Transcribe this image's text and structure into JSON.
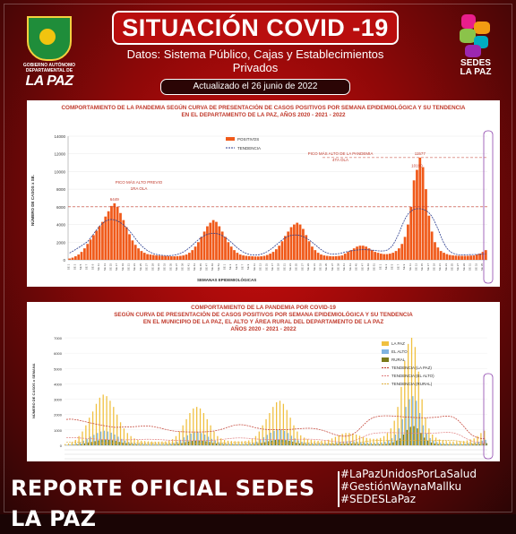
{
  "header": {
    "gov_name": "GOBIERNO AUTÓNOMO DEPARTAMENTAL DE",
    "gov_lapaz": "LA PAZ",
    "title": "SITUACIÓN COVID -19",
    "subtitle": "Datos: Sistema Público, Cajas y Establecimientos Privados",
    "updated_label": "Actualizado el",
    "updated_date": "26  junio de 2022",
    "sedes_line1": "SEDES",
    "sedes_line2": "LA PAZ"
  },
  "footer": {
    "report": "REPORTE OFICIAL SEDES LA PAZ",
    "hashtags": [
      "#LaPazUnidosPorLaSalud",
      "#GestiónWaynaMallku",
      "#SEDESLaPaz"
    ]
  },
  "chart_data": [
    {
      "type": "bar",
      "title_lines": [
        "COMPORTAMIENTO DE LA PANDEMIA SEGÚN CURVA DE PRESENTACIÓN DE CASOS POSITIVOS POR SEMANA EPIDEMIOLÓGICA Y SU TENDENCIA",
        "EN EL DEPARTAMENTO DE LA PAZ, AÑOS 2020 - 2021 - 2022"
      ],
      "xlabel": "SEMANAS EPIDEMIOLÓGICAS",
      "ylabel": "NÚMERO DE CASOS x SE.",
      "ylim": [
        0,
        14000
      ],
      "yticks": [
        0,
        2000,
        4000,
        6000,
        8000,
        10000,
        12000,
        14000
      ],
      "series": [
        {
          "name": "POSITIVOS",
          "color": "#f05a1a",
          "values": [
            150,
            250,
            400,
            600,
            900,
            1300,
            1800,
            2300,
            2800,
            3300,
            3800,
            4300,
            4900,
            5500,
            6100,
            6400,
            6000,
            5300,
            4500,
            3700,
            2900,
            2200,
            1700,
            1300,
            1000,
            800,
            650,
            600,
            550,
            500,
            480,
            450,
            430,
            420,
            400,
            400,
            420,
            450,
            500,
            600,
            800,
            1100,
            1500,
            2000,
            2600,
            3200,
            3800,
            4200,
            4500,
            4300,
            3800,
            3200,
            2600,
            2000,
            1500,
            1100,
            800,
            600,
            500,
            450,
            420,
            400,
            380,
            380,
            400,
            450,
            550,
            700,
            900,
            1200,
            1600,
            2100,
            2700,
            3200,
            3700,
            4000,
            4200,
            4000,
            3500,
            2800,
            2100,
            1500,
            1100,
            800,
            600,
            500,
            450,
            420,
            400,
            420,
            450,
            500,
            700,
            900,
            1100,
            1300,
            1500,
            1600,
            1600,
            1500,
            1300,
            1100,
            900,
            800,
            700,
            650,
            650,
            700,
            800,
            1000,
            1300,
            1800,
            2600,
            4000,
            6000,
            9000,
            10190,
            11577,
            10500,
            8000,
            5000,
            3200,
            2000,
            1400,
            1000,
            800,
            650,
            550,
            500,
            480,
            460,
            450,
            450,
            460,
            480,
            500,
            600,
            700,
            900,
            1100
          ]
        },
        {
          "name": "TENDENCIA",
          "color": "#2c3e8f"
        }
      ],
      "annotations": [
        {
          "text": "PICO MÁS ALTO PREVIO",
          "sub": "1RA OLA"
        },
        {
          "text": "PICO MÁS ALTO DE LA PANDEMIA",
          "sub": "4TA OLA"
        }
      ],
      "data_labels": [
        "6449",
        "10190",
        "11577"
      ],
      "reference_line": 11577
    },
    {
      "type": "bar",
      "title_lines": [
        "COMPORTAMIENTO DE LA PANDEMIA POR COVID-19",
        "SEGÚN CURVA DE PRESENTACIÓN DE CASOS POSITIVOS POR SEMANA EPIDEMIOLÓGICA Y SU TENDENCIA",
        "EN EL  MUNICIPIO DE LA PAZ, EL ALTO Y ÁREA RURAL DEL DEPARTAMENTO DE LA PAZ",
        "AÑOS 2020 - 2021 - 2022"
      ],
      "ylabel": "NÚMERO DE CASOS x SEMANA",
      "ylim": [
        0,
        7000
      ],
      "yticks": [
        0,
        1000,
        2000,
        3000,
        4000,
        5000,
        6000,
        7000
      ],
      "series": [
        {
          "name": "LA PAZ",
          "color": "#f0c040",
          "values": [
            80,
            120,
            200,
            350,
            600,
            900,
            1300,
            1800,
            2200,
            2700,
            3100,
            3300,
            3200,
            2900,
            2500,
            2000,
            1500,
            1100,
            800,
            600,
            450,
            350,
            300,
            280,
            260,
            250,
            240,
            240,
            250,
            260,
            300,
            400,
            600,
            900,
            1300,
            1700,
            2100,
            2400,
            2500,
            2400,
            2100,
            1700,
            1300,
            900,
            600,
            450,
            350,
            300,
            280,
            270,
            260,
            260,
            280,
            320,
            420,
            600,
            900,
            1300,
            1700,
            2100,
            2500,
            2800,
            2900,
            2700,
            2300,
            1800,
            1300,
            900,
            650,
            500,
            400,
            350,
            320,
            300,
            300,
            320,
            360,
            450,
            550,
            650,
            750,
            800,
            800,
            760,
            700,
            620,
            540,
            480,
            440,
            420,
            430,
            480,
            600,
            800,
            1100,
            1600,
            2500,
            3800,
            5500,
            6600,
            7000,
            6400,
            4800,
            3000,
            1800,
            1100,
            700,
            500,
            380,
            320,
            280,
            260,
            250,
            250,
            260,
            280,
            320,
            380,
            450,
            600,
            800,
            950
          ]
        },
        {
          "name": "EL ALTO",
          "color": "#7fb3e0",
          "values": [
            30,
            50,
            80,
            120,
            200,
            300,
            420,
            560,
            680,
            800,
            900,
            950,
            900,
            820,
            700,
            560,
            420,
            300,
            220,
            170,
            130,
            110,
            100,
            95,
            90,
            90,
            90,
            90,
            95,
            100,
            120,
            160,
            240,
            360,
            520,
            650,
            760,
            820,
            840,
            800,
            700,
            560,
            420,
            300,
            200,
            150,
            120,
            110,
            105,
            100,
            100,
            100,
            110,
            130,
            170,
            240,
            360,
            520,
            680,
            820,
            940,
            1000,
            1020,
            940,
            800,
            620,
            450,
            320,
            230,
            180,
            150,
            130,
            120,
            115,
            115,
            120,
            135,
            160,
            190,
            220,
            250,
            260,
            260,
            250,
            230,
            210,
            190,
            170,
            160,
            155,
            160,
            180,
            230,
            320,
            460,
            700,
            1100,
            1700,
            2500,
            3000,
            3200,
            2900,
            2100,
            1300,
            780,
            470,
            300,
            210,
            160,
            130,
            115,
            105,
            100,
            100,
            105,
            115,
            130,
            150,
            180,
            230,
            300,
            360
          ]
        },
        {
          "name": "RURAL",
          "color": "#7a7a1a",
          "values": [
            10,
            20,
            30,
            50,
            80,
            120,
            170,
            220,
            270,
            320,
            360,
            380,
            360,
            330,
            280,
            220,
            170,
            120,
            90,
            70,
            55,
            45,
            40,
            38,
            36,
            35,
            35,
            35,
            37,
            40,
            48,
            65,
            95,
            140,
            200,
            250,
            290,
            310,
            320,
            300,
            260,
            210,
            160,
            115,
            80,
            60,
            48,
            44,
            42,
            40,
            40,
            40,
            44,
            52,
            68,
            95,
            140,
            200,
            260,
            310,
            350,
            370,
            370,
            340,
            290,
            230,
            170,
            120,
            90,
            70,
            58,
            50,
            46,
            44,
            44,
            46,
            52,
            62,
            74,
            86,
            96,
            100,
            100,
            96,
            90,
            82,
            74,
            66,
            62,
            60,
            62,
            70,
            90,
            130,
            190,
            290,
            450,
            700,
            1000,
            1200,
            1250,
            1100,
            800,
            500,
            300,
            180,
            115,
            80,
            62,
            52,
            46,
            42,
            40,
            40,
            42,
            46,
            52,
            60,
            72,
            90,
            115,
            140
          ]
        },
        {
          "name": "TENDENCIA (LA PAZ)",
          "color": "#c0392b"
        },
        {
          "name": "TENDENCIA (EL ALTO)",
          "color": "#e08080"
        },
        {
          "name": "TENDENCIA (RURAL)",
          "color": "#e0b040"
        }
      ]
    }
  ]
}
